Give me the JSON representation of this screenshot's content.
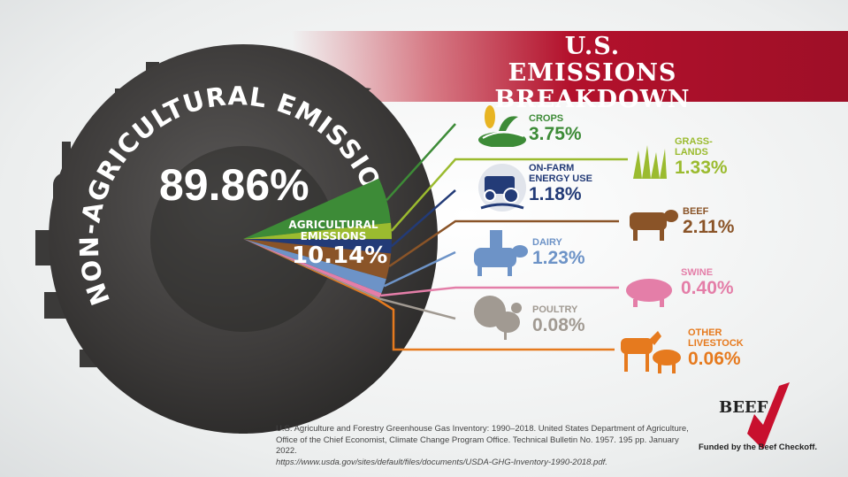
{
  "title_line1": "U.S. EMISSIONS",
  "title_line2": "BREAKDOWN",
  "chart_data": {
    "type": "pie",
    "title": "U.S. EMISSIONS BREAKDOWN",
    "main": {
      "label": "NON-AGRICULTURAL EMISSIONS",
      "value": 89.86,
      "display": "89.86%"
    },
    "agricultural": {
      "label_line1": "AGRICULTURAL",
      "label_line2": "EMISSIONS",
      "value": 10.14,
      "display": "10.14%"
    },
    "slices": [
      {
        "name": "CROPS",
        "value": 3.75,
        "display": "3.75%",
        "color": "#3d8b37"
      },
      {
        "name": "GRASS-LANDS",
        "value": 1.33,
        "display": "1.33%",
        "color": "#9bbb2f"
      },
      {
        "name": "ON-FARM ENERGY USE",
        "value": 1.18,
        "display": "1.18%",
        "color": "#233b77"
      },
      {
        "name": "BEEF",
        "value": 2.11,
        "display": "2.11%",
        "color": "#8a5428"
      },
      {
        "name": "DAIRY",
        "value": 1.23,
        "display": "1.23%",
        "color": "#6d93c7"
      },
      {
        "name": "SWINE",
        "value": 0.4,
        "display": "0.40%",
        "color": "#e47ea8"
      },
      {
        "name": "POULTRY",
        "value": 0.08,
        "display": "0.08%",
        "color": "#a19a92"
      },
      {
        "name": "OTHER LIVESTOCK",
        "value": 0.06,
        "display": "0.06%",
        "color": "#e67a1e"
      }
    ]
  },
  "labels": {
    "crops_name": "CROPS",
    "crops_pct": "3.75%",
    "energy_name1": "ON-FARM",
    "energy_name2": "ENERGY USE",
    "energy_pct": "1.18%",
    "dairy_name": "DAIRY",
    "dairy_pct": "1.23%",
    "poultry_name": "POULTRY",
    "poultry_pct": "0.08%",
    "grass_name1": "GRASS-",
    "grass_name2": "LANDS",
    "grass_pct": "1.33%",
    "beef_name": "BEEF",
    "beef_pct": "2.11%",
    "swine_name": "SWINE",
    "swine_pct": "0.40%",
    "other_name1": "OTHER",
    "other_name2": "LIVESTOCK",
    "other_pct": "0.06%"
  },
  "footer": {
    "line1": "U.S. Agriculture and Forestry Greenhouse Gas Inventory: 1990–2018. United States Department of Agriculture,",
    "line2": "Office of the Chief Economist, Climate Change Program Office. Technical Bulletin No. 1957. 195 pp. January 2022.",
    "url": "https://www.usda.gov/sites/default/files/documents/USDA-GHG-Inventory-1990-2018.pdf."
  },
  "logo": {
    "text": "BEEF",
    "funded": "Funded by the Beef Checkoff."
  }
}
